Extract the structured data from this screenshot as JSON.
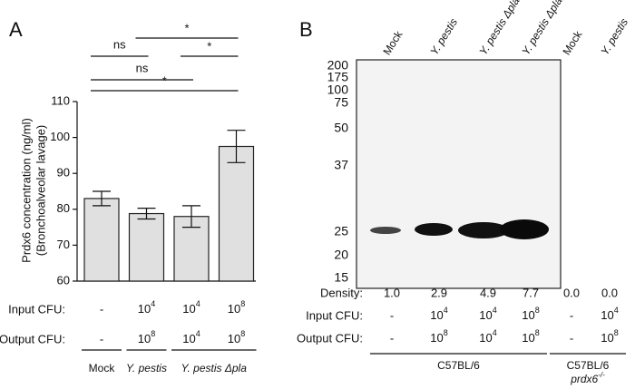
{
  "chart_data": {
    "type": "bar",
    "panel_label": "A",
    "y_label": [
      "Prdx6 concentration (ng/ml)",
      "(Bronchoalveolar lavage)"
    ],
    "values": [
      83,
      78.8,
      78,
      97.5
    ],
    "errors": [
      2,
      1.5,
      3,
      4.5
    ],
    "color": "#e0e0e0",
    "ylim": [
      60,
      110
    ],
    "yticks": [
      60,
      70,
      80,
      90,
      100,
      110
    ],
    "comparisons": [
      {
        "label": "*",
        "bars": [
          1,
          3
        ]
      },
      {
        "label": "ns",
        "bars": [
          0,
          1
        ]
      },
      {
        "label": "*",
        "bars": [
          2,
          3
        ]
      },
      {
        "label": "ns",
        "bars": [
          0,
          2
        ]
      },
      {
        "label": "*",
        "bars": [
          0,
          3
        ]
      }
    ],
    "rows": [
      {
        "label": "Input CFU:",
        "cells": [
          "-",
          {
            "base": "10",
            "exp": "4"
          },
          {
            "base": "10",
            "exp": "4"
          },
          {
            "base": "10",
            "exp": "8"
          }
        ]
      },
      {
        "label": "Output CFU:",
        "cells": [
          "-",
          {
            "base": "10",
            "exp": "8"
          },
          {
            "base": "10",
            "exp": "4"
          },
          {
            "base": "10",
            "exp": "8"
          }
        ]
      }
    ],
    "groups": [
      {
        "label": "Mock",
        "bars": [
          0
        ]
      },
      {
        "label": "Y. pestis",
        "bars": [
          1
        ]
      },
      {
        "label": "Y. pestis Δpla",
        "bars": [
          2,
          3
        ]
      }
    ]
  },
  "blot": {
    "panel_label": "B",
    "lanes": [
      "Mock",
      "Y. pestis",
      "Y. pestis Δpla",
      "Y. pestis Δpla",
      "Mock",
      "Y. pestis"
    ],
    "markers": [
      "200",
      "175",
      "100",
      "75",
      "50",
      "37",
      "25",
      "20",
      "15"
    ],
    "rows": [
      {
        "label": "Density:",
        "cells": [
          "1.0",
          "2.9",
          "4.9",
          "7.7",
          "0.0",
          "0.0"
        ]
      },
      {
        "label": "Input CFU:",
        "cells": [
          "-",
          {
            "base": "10",
            "exp": "4"
          },
          {
            "base": "10",
            "exp": "4"
          },
          {
            "base": "10",
            "exp": "8"
          },
          "-",
          {
            "base": "10",
            "exp": "4"
          }
        ]
      },
      {
        "label": "Output CFU:",
        "cells": [
          "-",
          {
            "base": "10",
            "exp": "8"
          },
          {
            "base": "10",
            "exp": "4"
          },
          {
            "base": "10",
            "exp": "8"
          },
          "-",
          {
            "base": "10",
            "exp": "8"
          }
        ]
      }
    ],
    "groups": [
      {
        "label": "C57BL/6",
        "lanes": [
          0,
          1,
          2,
          3
        ]
      },
      {
        "label": "C57BL/6",
        "sublabel": {
          "text": "prdx6",
          "sup": "-/-"
        },
        "lanes": [
          4,
          5
        ]
      }
    ]
  }
}
